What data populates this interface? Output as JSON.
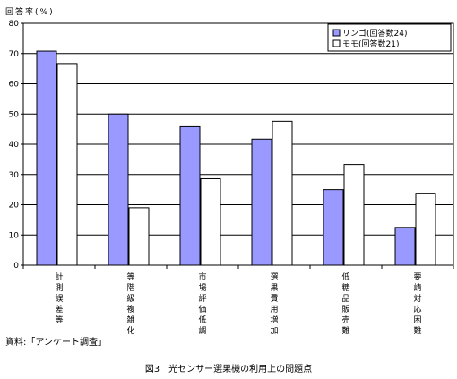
{
  "chart_data": {
    "type": "bar",
    "ylabel": "回答率(%)",
    "ylim": [
      0,
      80
    ],
    "yticks": [
      0,
      10,
      20,
      30,
      40,
      50,
      60,
      70,
      80
    ],
    "grid": true,
    "legend_position": "top-right",
    "categories": [
      "計測誤差等",
      "等階級複雑化",
      "市場評価低調",
      "選果費用増加",
      "低糖品販売難",
      "要請対応困難"
    ],
    "series": [
      {
        "name": "リンゴ(回答数24)",
        "color": "#9999ff",
        "values": [
          70.8,
          50.0,
          45.8,
          41.7,
          25.0,
          12.5
        ]
      },
      {
        "name": "モモ(回答数21)",
        "color": "#ffffff",
        "values": [
          66.7,
          19.0,
          28.6,
          47.6,
          33.3,
          23.8
        ]
      }
    ],
    "source_note": "資料:「アンケート調査」"
  },
  "caption": "図3　光センサー選果機の利用上の問題点"
}
